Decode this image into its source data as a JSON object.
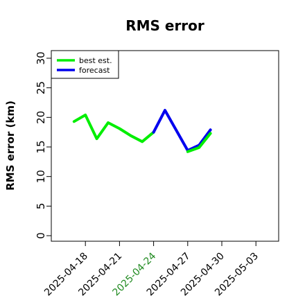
{
  "chart_data": {
    "type": "line",
    "title": "RMS error",
    "ylabel": "RMS error (km)",
    "xlabel": "",
    "ylim": [
      0,
      30
    ],
    "yticks": [
      0,
      5,
      10,
      15,
      20,
      25,
      30
    ],
    "xlim": [
      "2025-04-15",
      "2025-05-05"
    ],
    "xticks": [
      "2025-04-18",
      "2025-04-21",
      "2025-04-24",
      "2025-04-27",
      "2025-04-30",
      "2025-05-03"
    ],
    "highlight_tick": "2025-04-24",
    "highlight_color": "#228b22",
    "grid": false,
    "legend_position": "top-left",
    "series": [
      {
        "name": "best est.",
        "color": "#00ee00",
        "x": [
          "2025-04-17",
          "2025-04-18",
          "2025-04-19",
          "2025-04-20",
          "2025-04-21",
          "2025-04-22",
          "2025-04-23",
          "2025-04-24"
        ],
        "y": [
          19.3,
          20.4,
          16.4,
          19.1,
          18.1,
          16.9,
          15.9,
          17.5
        ]
      },
      {
        "name": "forecast",
        "color": "#0000ee",
        "x": [
          "2025-04-24",
          "2025-04-25",
          "2025-04-26",
          "2025-04-27",
          "2025-04-28",
          "2025-04-29"
        ],
        "y": [
          17.5,
          21.2,
          17.8,
          14.4,
          15.3,
          17.9
        ]
      },
      {
        "name": "",
        "color": "#00ee00",
        "x": [
          "2025-04-27",
          "2025-04-28",
          "2025-04-29"
        ],
        "y": [
          14.2,
          14.9,
          17.3
        ]
      }
    ]
  }
}
